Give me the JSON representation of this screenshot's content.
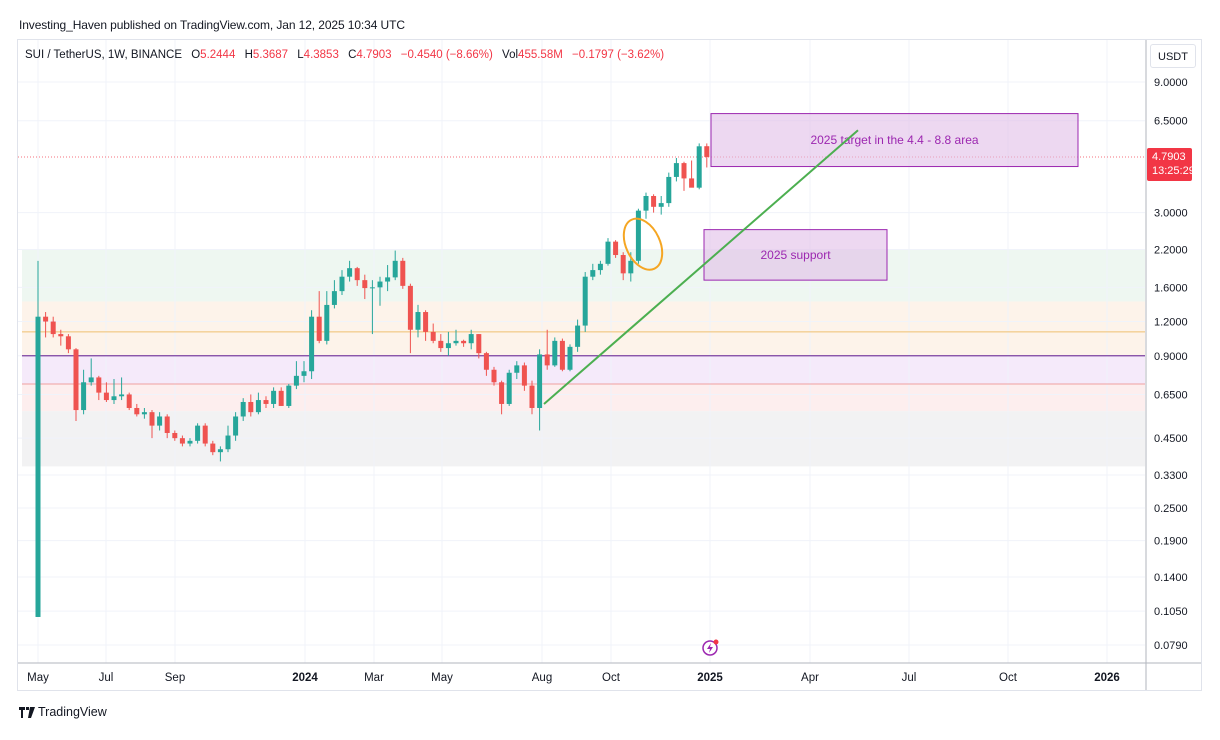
{
  "header": {
    "publisher_line": "Investing_Haven published on TradingView.com, Jan 12, 2025 10:34 UTC"
  },
  "legend": {
    "symbol": "SUI / TetherUS, 1W, BINANCE",
    "open_label": "O",
    "open": "5.2444",
    "high_label": "H",
    "high": "5.3687",
    "low_label": "L",
    "low": "4.3853",
    "close_label": "C",
    "close": "4.7903",
    "change": "−0.4540 (−8.66%)",
    "vol_label": "Vol",
    "vol": "455.58M",
    "vol_change": "−0.1797 (−3.62%)"
  },
  "price_axis": {
    "currency": "USDT",
    "ticks": [
      "9.0000",
      "6.5000",
      "3.0000",
      "2.2000",
      "1.6000",
      "1.2000",
      "0.9000",
      "0.6500",
      "0.4500",
      "0.3300",
      "0.2500",
      "0.1900",
      "0.1400",
      "0.1050",
      "0.0790"
    ],
    "last_price": "4.7903",
    "countdown": "13:25:29"
  },
  "time_axis": {
    "labels": [
      "May",
      "Jul",
      "Sep",
      "2024",
      "Mar",
      "May",
      "Aug",
      "Oct",
      "2025",
      "Apr",
      "Jul",
      "Oct",
      "2026"
    ]
  },
  "annotations": {
    "target_box": "2025 target in the 4.4 - 8.8 area",
    "support_box": "2025 support"
  },
  "footer": {
    "brand": "TradingView"
  },
  "colors": {
    "up": "#26a69a",
    "down": "#ef5350",
    "annotation_text": "#9c27b0",
    "trendline": "#4caf50",
    "ellipse": "#f5a623",
    "price_tag": "#f23645"
  },
  "chart_data": {
    "type": "candlestick",
    "title": "SUI / TetherUS, 1W, BINANCE",
    "xlabel": "",
    "ylabel": "USDT",
    "scale": "log",
    "ylim": [
      0.075,
      10
    ],
    "grid": true,
    "x_tick_labels": [
      "May",
      "Jul",
      "Sep",
      "2024",
      "Mar",
      "May",
      "Aug",
      "Oct",
      "2025",
      "Apr",
      "Jul",
      "Oct",
      "2026"
    ],
    "y_tick_labels": [
      9.0,
      6.5,
      3.0,
      2.2,
      1.6,
      1.2,
      0.9,
      0.65,
      0.45,
      0.33,
      0.25,
      0.19,
      0.14,
      0.105,
      0.079
    ],
    "last_candle": {
      "open": 5.2444,
      "high": 5.3687,
      "low": 4.3853,
      "close": 4.7903,
      "volume": "455.58M",
      "change": -0.454,
      "change_pct": -8.66
    },
    "candles_approx": [
      {
        "o": 0.1,
        "h": 2.0,
        "l": 0.1,
        "c": 1.25
      },
      {
        "o": 1.25,
        "h": 1.3,
        "l": 1.05,
        "c": 1.2
      },
      {
        "o": 1.2,
        "h": 1.25,
        "l": 1.05,
        "c": 1.08
      },
      {
        "o": 1.08,
        "h": 1.12,
        "l": 0.98,
        "c": 1.06
      },
      {
        "o": 1.06,
        "h": 1.08,
        "l": 0.92,
        "c": 0.95
      },
      {
        "o": 0.95,
        "h": 0.96,
        "l": 0.52,
        "c": 0.57
      },
      {
        "o": 0.57,
        "h": 0.8,
        "l": 0.55,
        "c": 0.72
      },
      {
        "o": 0.72,
        "h": 0.88,
        "l": 0.7,
        "c": 0.75
      },
      {
        "o": 0.75,
        "h": 0.76,
        "l": 0.62,
        "c": 0.66
      },
      {
        "o": 0.66,
        "h": 0.72,
        "l": 0.61,
        "c": 0.62
      },
      {
        "o": 0.62,
        "h": 0.74,
        "l": 0.6,
        "c": 0.64
      },
      {
        "o": 0.64,
        "h": 0.75,
        "l": 0.62,
        "c": 0.65
      },
      {
        "o": 0.65,
        "h": 0.66,
        "l": 0.57,
        "c": 0.58
      },
      {
        "o": 0.58,
        "h": 0.6,
        "l": 0.54,
        "c": 0.55
      },
      {
        "o": 0.55,
        "h": 0.58,
        "l": 0.53,
        "c": 0.56
      },
      {
        "o": 0.56,
        "h": 0.57,
        "l": 0.45,
        "c": 0.5
      },
      {
        "o": 0.5,
        "h": 0.56,
        "l": 0.48,
        "c": 0.54
      },
      {
        "o": 0.54,
        "h": 0.55,
        "l": 0.45,
        "c": 0.47
      },
      {
        "o": 0.47,
        "h": 0.48,
        "l": 0.44,
        "c": 0.45
      },
      {
        "o": 0.45,
        "h": 0.46,
        "l": 0.42,
        "c": 0.43
      },
      {
        "o": 0.43,
        "h": 0.45,
        "l": 0.42,
        "c": 0.44
      },
      {
        "o": 0.44,
        "h": 0.51,
        "l": 0.43,
        "c": 0.5
      },
      {
        "o": 0.5,
        "h": 0.51,
        "l": 0.42,
        "c": 0.43
      },
      {
        "o": 0.43,
        "h": 0.44,
        "l": 0.39,
        "c": 0.4
      },
      {
        "o": 0.4,
        "h": 0.42,
        "l": 0.37,
        "c": 0.41
      },
      {
        "o": 0.41,
        "h": 0.5,
        "l": 0.4,
        "c": 0.46
      },
      {
        "o": 0.46,
        "h": 0.56,
        "l": 0.44,
        "c": 0.54
      },
      {
        "o": 0.54,
        "h": 0.63,
        "l": 0.52,
        "c": 0.61
      },
      {
        "o": 0.61,
        "h": 0.65,
        "l": 0.54,
        "c": 0.56
      },
      {
        "o": 0.56,
        "h": 0.66,
        "l": 0.55,
        "c": 0.62
      },
      {
        "o": 0.62,
        "h": 0.64,
        "l": 0.58,
        "c": 0.6
      },
      {
        "o": 0.6,
        "h": 0.69,
        "l": 0.58,
        "c": 0.67
      },
      {
        "o": 0.67,
        "h": 0.69,
        "l": 0.59,
        "c": 0.59
      },
      {
        "o": 0.59,
        "h": 0.71,
        "l": 0.58,
        "c": 0.7
      },
      {
        "o": 0.7,
        "h": 0.86,
        "l": 0.68,
        "c": 0.76
      },
      {
        "o": 0.76,
        "h": 0.86,
        "l": 0.72,
        "c": 0.79
      },
      {
        "o": 0.79,
        "h": 1.32,
        "l": 0.74,
        "c": 1.25
      },
      {
        "o": 1.25,
        "h": 1.55,
        "l": 1.0,
        "c": 1.02
      },
      {
        "o": 1.02,
        "h": 1.55,
        "l": 0.99,
        "c": 1.38
      },
      {
        "o": 1.38,
        "h": 1.7,
        "l": 1.34,
        "c": 1.55
      },
      {
        "o": 1.55,
        "h": 1.85,
        "l": 1.5,
        "c": 1.75
      },
      {
        "o": 1.75,
        "h": 2.0,
        "l": 1.68,
        "c": 1.88
      },
      {
        "o": 1.88,
        "h": 1.9,
        "l": 1.62,
        "c": 1.7
      },
      {
        "o": 1.7,
        "h": 1.78,
        "l": 1.45,
        "c": 1.59
      },
      {
        "o": 1.59,
        "h": 1.7,
        "l": 1.08,
        "c": 1.6
      },
      {
        "o": 1.6,
        "h": 1.75,
        "l": 1.37,
        "c": 1.68
      },
      {
        "o": 1.68,
        "h": 1.93,
        "l": 1.55,
        "c": 1.74
      },
      {
        "o": 1.74,
        "h": 2.18,
        "l": 1.7,
        "c": 2.0
      },
      {
        "o": 2.0,
        "h": 2.05,
        "l": 1.58,
        "c": 1.62
      },
      {
        "o": 1.62,
        "h": 1.65,
        "l": 0.92,
        "c": 1.12
      },
      {
        "o": 1.12,
        "h": 1.38,
        "l": 1.05,
        "c": 1.3
      },
      {
        "o": 1.3,
        "h": 1.32,
        "l": 1.02,
        "c": 1.1
      },
      {
        "o": 1.1,
        "h": 1.18,
        "l": 1.0,
        "c": 1.02
      },
      {
        "o": 1.02,
        "h": 1.08,
        "l": 0.93,
        "c": 0.96
      },
      {
        "o": 0.96,
        "h": 1.1,
        "l": 0.9,
        "c": 1.0
      },
      {
        "o": 1.0,
        "h": 1.12,
        "l": 0.98,
        "c": 1.02
      },
      {
        "o": 1.02,
        "h": 1.03,
        "l": 0.97,
        "c": 1.0
      },
      {
        "o": 1.0,
        "h": 1.12,
        "l": 0.95,
        "c": 1.08
      },
      {
        "o": 1.08,
        "h": 1.08,
        "l": 0.88,
        "c": 0.92
      },
      {
        "o": 0.92,
        "h": 0.93,
        "l": 0.76,
        "c": 0.8
      },
      {
        "o": 0.8,
        "h": 0.82,
        "l": 0.7,
        "c": 0.72
      },
      {
        "o": 0.72,
        "h": 0.73,
        "l": 0.55,
        "c": 0.6
      },
      {
        "o": 0.6,
        "h": 0.8,
        "l": 0.59,
        "c": 0.78
      },
      {
        "o": 0.78,
        "h": 0.86,
        "l": 0.74,
        "c": 0.83
      },
      {
        "o": 0.83,
        "h": 0.85,
        "l": 0.67,
        "c": 0.7
      },
      {
        "o": 0.7,
        "h": 0.73,
        "l": 0.55,
        "c": 0.58
      },
      {
        "o": 0.58,
        "h": 0.95,
        "l": 0.48,
        "c": 0.91
      },
      {
        "o": 0.91,
        "h": 1.12,
        "l": 0.8,
        "c": 0.83
      },
      {
        "o": 0.83,
        "h": 1.05,
        "l": 0.82,
        "c": 1.02
      },
      {
        "o": 1.02,
        "h": 1.04,
        "l": 0.79,
        "c": 0.8
      },
      {
        "o": 0.8,
        "h": 0.99,
        "l": 0.79,
        "c": 0.97
      },
      {
        "o": 0.97,
        "h": 1.22,
        "l": 0.93,
        "c": 1.16
      },
      {
        "o": 1.16,
        "h": 1.82,
        "l": 1.1,
        "c": 1.75
      },
      {
        "o": 1.75,
        "h": 1.95,
        "l": 1.7,
        "c": 1.85
      },
      {
        "o": 1.85,
        "h": 2.0,
        "l": 1.78,
        "c": 1.95
      },
      {
        "o": 1.95,
        "h": 2.42,
        "l": 1.92,
        "c": 2.35
      },
      {
        "o": 2.35,
        "h": 2.38,
        "l": 2.05,
        "c": 2.1
      },
      {
        "o": 2.1,
        "h": 2.15,
        "l": 1.7,
        "c": 1.8
      },
      {
        "o": 1.8,
        "h": 2.15,
        "l": 1.68,
        "c": 2.0
      },
      {
        "o": 2.0,
        "h": 3.1,
        "l": 1.95,
        "c": 3.05
      },
      {
        "o": 3.05,
        "h": 3.55,
        "l": 2.85,
        "c": 3.45
      },
      {
        "o": 3.45,
        "h": 3.5,
        "l": 3.0,
        "c": 3.15
      },
      {
        "o": 3.15,
        "h": 3.45,
        "l": 2.95,
        "c": 3.25
      },
      {
        "o": 3.25,
        "h": 4.2,
        "l": 3.15,
        "c": 4.05
      },
      {
        "o": 4.05,
        "h": 4.75,
        "l": 3.9,
        "c": 4.55
      },
      {
        "o": 4.55,
        "h": 4.6,
        "l": 3.6,
        "c": 4.0
      },
      {
        "o": 4.0,
        "h": 4.65,
        "l": 3.8,
        "c": 3.7
      },
      {
        "o": 3.7,
        "h": 5.37,
        "l": 3.65,
        "c": 5.24
      },
      {
        "o": 5.2444,
        "h": 5.3687,
        "l": 4.3853,
        "c": 4.7903
      }
    ]
  }
}
